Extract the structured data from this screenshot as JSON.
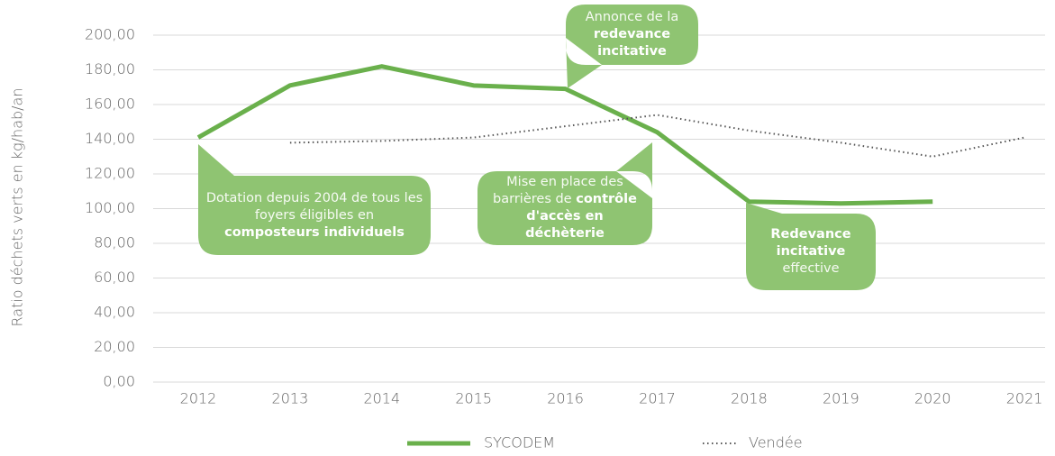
{
  "chart_data": {
    "type": "line",
    "y_label": "Ratio déchets verts en kg/hab/an",
    "categories": [
      "2012",
      "2013",
      "2014",
      "2015",
      "2016",
      "2017",
      "2018",
      "2019",
      "2020",
      "2021"
    ],
    "series": [
      {
        "name": "SYCODEM",
        "color": "#6ab04c",
        "style": "solid",
        "values": [
          141,
          171,
          182,
          171,
          169,
          144,
          104,
          103,
          104,
          null
        ]
      },
      {
        "name": "Vendée",
        "color": "#555555",
        "style": "dotted",
        "values": [
          null,
          138,
          139,
          141,
          147.5,
          154,
          145,
          138,
          130,
          141
        ]
      }
    ],
    "ylim": [
      0,
      200
    ],
    "yticks": [
      {
        "value": 0,
        "label": "0,00"
      },
      {
        "value": 20,
        "label": "20,00"
      },
      {
        "value": 40,
        "label": "40,00"
      },
      {
        "value": 60,
        "label": "60,00"
      },
      {
        "value": 80,
        "label": "80,00"
      },
      {
        "value": 100,
        "label": "100,00"
      },
      {
        "value": 120,
        "label": "120,00"
      },
      {
        "value": 140,
        "label": "140,00"
      },
      {
        "value": 160,
        "label": "160,00"
      },
      {
        "value": 180,
        "label": "180,00"
      },
      {
        "value": 200,
        "label": "200,00"
      }
    ],
    "grid": true,
    "legend": "bottom",
    "annotations": [
      {
        "color": "#8fc472",
        "parts": [
          {
            "text": "Annonce de la",
            "strong": false
          },
          {
            "text": "redevance incitative",
            "strong": true
          }
        ]
      },
      {
        "color": "#8fc472",
        "parts": [
          {
            "text": "Dotation depuis 2004 de tous les foyers éligibles en",
            "strong": false
          },
          {
            "text": "composteurs individuels",
            "strong": true
          }
        ]
      },
      {
        "color": "#8fc472",
        "parts": [
          {
            "text": "Mise en place des barrières de",
            "strong": false
          },
          {
            "text": "contrôle d'accès en déchèterie",
            "strong": true
          }
        ]
      },
      {
        "color": "#8fc472",
        "parts": [
          {
            "text": "Redevance incitative",
            "strong": true
          },
          {
            "text": "effective",
            "strong": false
          }
        ]
      }
    ]
  }
}
